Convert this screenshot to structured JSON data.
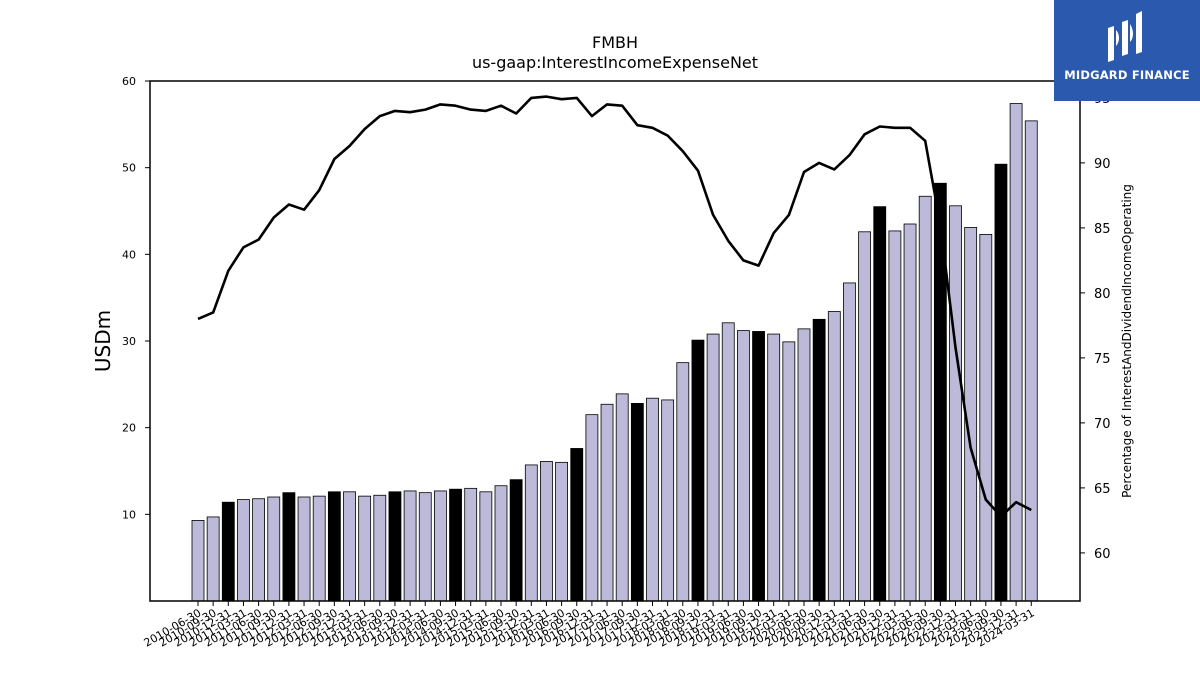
{
  "chart_data": {
    "type": "bar+line",
    "title": "FMBH",
    "subtitle": "us-gaap:InterestIncomeExpenseNet",
    "ylabel": "USDm",
    "ylabel_right": "Percentage of InterestAndDividendIncomeOperating",
    "ylim": [
      0,
      60
    ],
    "ylim_right": [
      56.3,
      96.3
    ],
    "y_ticks": [
      "10",
      "20",
      "30",
      "40",
      "50",
      "60"
    ],
    "y_ticks_right": [
      "60",
      "65",
      "70",
      "75",
      "80",
      "85",
      "90",
      "95"
    ],
    "categories": [
      "2010-06-30",
      "2010-09-30",
      "2010-12-31",
      "2011-03-31",
      "2011-06-30",
      "2011-09-30",
      "2011-12-31",
      "2012-03-31",
      "2012-06-30",
      "2012-09-30",
      "2012-12-31",
      "2013-03-31",
      "2013-06-30",
      "2013-09-30",
      "2013-12-31",
      "2014-03-31",
      "2014-06-30",
      "2014-09-30",
      "2014-12-31",
      "2015-03-31",
      "2015-06-30",
      "2015-09-30",
      "2015-12-31",
      "2016-03-31",
      "2016-06-30",
      "2016-09-30",
      "2016-12-31",
      "2017-03-31",
      "2017-06-30",
      "2017-09-30",
      "2017-12-31",
      "2018-03-31",
      "2018-06-30",
      "2018-09-30",
      "2018-12-31",
      "2019-03-31",
      "2019-06-30",
      "2019-09-30",
      "2019-12-31",
      "2020-03-31",
      "2020-06-30",
      "2020-09-30",
      "2020-12-31",
      "2021-03-31",
      "2021-06-30",
      "2021-09-30",
      "2021-12-31",
      "2022-03-31",
      "2022-06-30",
      "2022-09-30",
      "2022-12-31",
      "2023-03-31",
      "2023-06-30",
      "2023-09-30",
      "2023-12-31",
      "2024-03-31"
    ],
    "bar_values": [
      9.3,
      9.7,
      11.4,
      11.7,
      11.8,
      12.0,
      12.5,
      12.0,
      12.1,
      12.6,
      12.6,
      12.1,
      12.2,
      12.6,
      12.7,
      12.5,
      12.7,
      12.9,
      13.0,
      12.6,
      13.3,
      14.0,
      15.7,
      16.1,
      16.0,
      17.6,
      21.5,
      22.7,
      23.9,
      22.8,
      23.4,
      23.2,
      27.5,
      30.1,
      30.8,
      32.1,
      31.2,
      31.1,
      30.8,
      29.9,
      31.4,
      32.5,
      33.4,
      36.7,
      42.6,
      45.5,
      42.7,
      43.5,
      46.7,
      48.2,
      45.6,
      43.1,
      42.3,
      50.4,
      57.4,
      55.4
    ],
    "bar_highlight": [
      false,
      false,
      true,
      false,
      false,
      false,
      true,
      false,
      false,
      true,
      false,
      false,
      false,
      true,
      false,
      false,
      false,
      true,
      false,
      false,
      false,
      true,
      false,
      false,
      false,
      true,
      false,
      false,
      false,
      true,
      false,
      false,
      false,
      true,
      false,
      false,
      false,
      true,
      false,
      false,
      false,
      true,
      false,
      false,
      false,
      true,
      false,
      false,
      false,
      true,
      false,
      false,
      false,
      true,
      false,
      false
    ],
    "line_values": [
      78.0,
      78.5,
      81.7,
      83.5,
      84.1,
      85.8,
      86.8,
      86.4,
      87.9,
      90.3,
      91.3,
      92.6,
      93.6,
      94.0,
      93.9,
      94.1,
      94.5,
      94.4,
      94.1,
      94.0,
      94.4,
      93.8,
      95.0,
      95.1,
      94.9,
      95.0,
      93.6,
      94.5,
      94.4,
      92.9,
      92.7,
      92.1,
      90.9,
      89.4,
      86.0,
      84.0,
      82.5,
      82.1,
      84.6,
      86.0,
      89.3,
      90.0,
      89.5,
      90.6,
      92.2,
      92.8,
      92.7,
      92.7,
      91.7,
      85.2,
      75.8,
      68.1,
      64.1,
      62.8,
      63.9,
      63.3
    ],
    "colors": {
      "bar": "#bcbad8",
      "bar_highlight": "#000000",
      "bar_edge": "#000000",
      "line": "#000000"
    },
    "grid": false
  },
  "logo": {
    "text": "MIDGARD FINANCE",
    "icon": "midgard-logo-icon"
  }
}
